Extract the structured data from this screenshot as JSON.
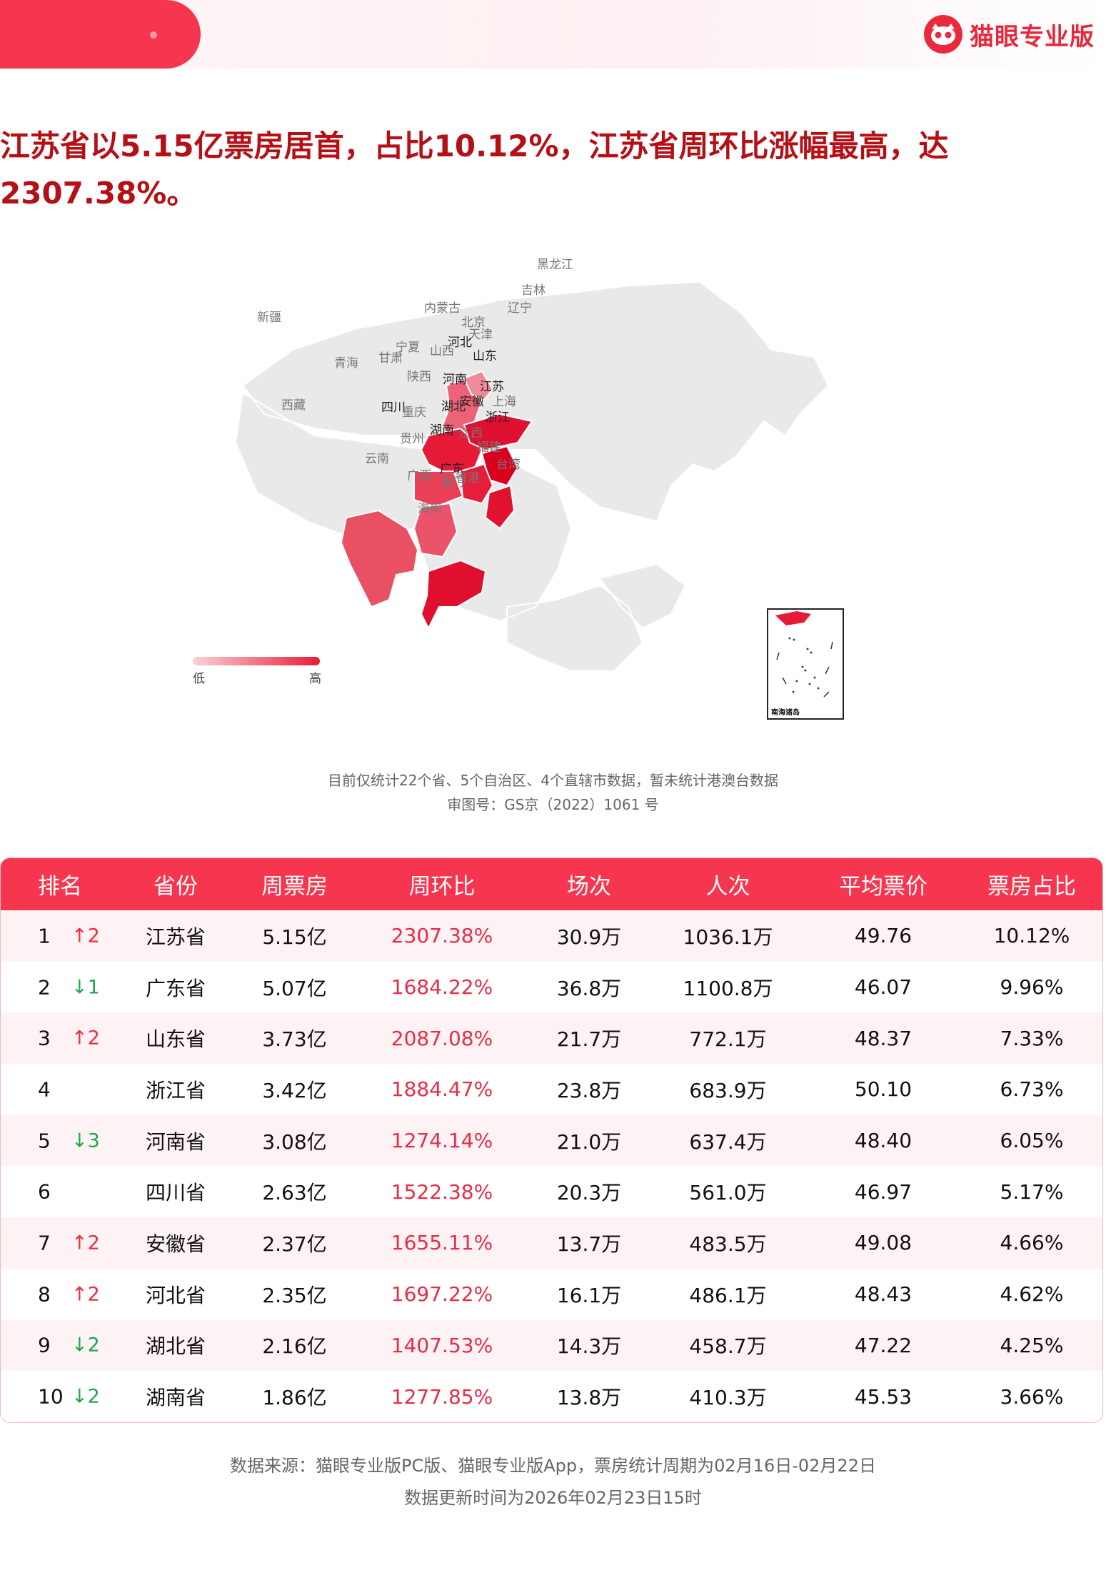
{
  "header": {
    "brand_name": "猫眼专业版",
    "brand_color": "#e8273a",
    "accent_color": "#f6364f"
  },
  "headline": {
    "line1": "江苏省以5.15亿票房居首，占比10.12%，江苏省周环比涨幅最高，达",
    "line2": "2307.38%。"
  },
  "map": {
    "provinces": {
      "heilongjiang": "黑龙江",
      "jilin": "吉林",
      "liaoning": "辽宁",
      "neimenggu": "内蒙古",
      "beijing": "北京",
      "tianjin": "天津",
      "hebei": "河北",
      "shanxi": "山西",
      "shandong": "山东",
      "xinjiang": "新疆",
      "qinghai": "青海",
      "gansu": "甘肃",
      "ningxia": "宁夏",
      "shaanxi": "陕西",
      "henan": "河南",
      "jiangsu": "江苏",
      "shanghai": "上海",
      "anhui": "安徽",
      "hubei": "湖北",
      "sichuan": "四川",
      "xizang": "西藏",
      "chongqing": "重庆",
      "zhejiang": "浙江",
      "hunan": "湖南",
      "jiangxi": "江西",
      "guizhou": "贵州",
      "fujian": "福建",
      "yunnan": "云南",
      "taiwan": "台湾",
      "guangxi": "广西",
      "guangdong": "广东",
      "xianggang": "香港",
      "aomen": "澳门",
      "hainan": "海南"
    },
    "legend": {
      "low": "低",
      "high": "高"
    },
    "inset_caption": "南海诸岛",
    "colors": {
      "high": "#e41a36",
      "mid": "#ec4560",
      "low": "#f18c9c",
      "none": "#e9e9e9"
    }
  },
  "notes": {
    "coverage": "目前仅统计22个省、5个自治区、4个直辖市数据，暂未统计港澳台数据",
    "approval": "审图号：GS京（2022）1061 号"
  },
  "table": {
    "headers": [
      "排名",
      "省份",
      "周票房",
      "周环比",
      "场次",
      "人次",
      "平均票价",
      "票房占比"
    ],
    "rows": [
      {
        "rank": "1",
        "trend": "↑2",
        "dir": "up",
        "province": "江苏省",
        "box": "5.15亿",
        "wow": "2307.38%",
        "shows": "30.9万",
        "admissions": "1036.1万",
        "avg_price": "49.76",
        "share": "10.12%"
      },
      {
        "rank": "2",
        "trend": "↓1",
        "dir": "down",
        "province": "广东省",
        "box": "5.07亿",
        "wow": "1684.22%",
        "shows": "36.8万",
        "admissions": "1100.8万",
        "avg_price": "46.07",
        "share": "9.96%"
      },
      {
        "rank": "3",
        "trend": "↑2",
        "dir": "up",
        "province": "山东省",
        "box": "3.73亿",
        "wow": "2087.08%",
        "shows": "21.7万",
        "admissions": "772.1万",
        "avg_price": "48.37",
        "share": "7.33%"
      },
      {
        "rank": "4",
        "trend": "",
        "dir": "",
        "province": "浙江省",
        "box": "3.42亿",
        "wow": "1884.47%",
        "shows": "23.8万",
        "admissions": "683.9万",
        "avg_price": "50.10",
        "share": "6.73%"
      },
      {
        "rank": "5",
        "trend": "↓3",
        "dir": "down",
        "province": "河南省",
        "box": "3.08亿",
        "wow": "1274.14%",
        "shows": "21.0万",
        "admissions": "637.4万",
        "avg_price": "48.40",
        "share": "6.05%"
      },
      {
        "rank": "6",
        "trend": "",
        "dir": "",
        "province": "四川省",
        "box": "2.63亿",
        "wow": "1522.38%",
        "shows": "20.3万",
        "admissions": "561.0万",
        "avg_price": "46.97",
        "share": "5.17%"
      },
      {
        "rank": "7",
        "trend": "↑2",
        "dir": "up",
        "province": "安徽省",
        "box": "2.37亿",
        "wow": "1655.11%",
        "shows": "13.7万",
        "admissions": "483.5万",
        "avg_price": "49.08",
        "share": "4.66%"
      },
      {
        "rank": "8",
        "trend": "↑2",
        "dir": "up",
        "province": "河北省",
        "box": "2.35亿",
        "wow": "1697.22%",
        "shows": "16.1万",
        "admissions": "486.1万",
        "avg_price": "48.43",
        "share": "4.62%"
      },
      {
        "rank": "9",
        "trend": "↓2",
        "dir": "down",
        "province": "湖北省",
        "box": "2.16亿",
        "wow": "1407.53%",
        "shows": "14.3万",
        "admissions": "458.7万",
        "avg_price": "47.22",
        "share": "4.25%"
      },
      {
        "rank": "10",
        "trend": "↓2",
        "dir": "down",
        "province": "湖南省",
        "box": "1.86亿",
        "wow": "1277.85%",
        "shows": "13.8万",
        "admissions": "410.3万",
        "avg_price": "45.53",
        "share": "3.66%"
      }
    ]
  },
  "footer": {
    "source": "数据来源：猫眼专业版PC版、猫眼专业版App，票房统计周期为02月16日-02月22日",
    "updated": "数据更新时间为2026年02月23日15时"
  }
}
